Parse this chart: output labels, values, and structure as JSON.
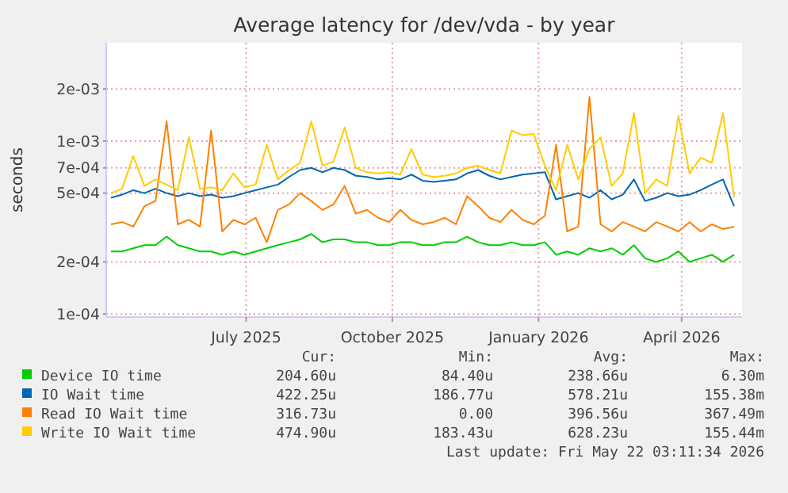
{
  "chart_data": {
    "type": "line",
    "title": "Average latency for /dev/vda - by year",
    "ylabel": "seconds",
    "log": "y",
    "grid": true,
    "legend": "bottom",
    "marker": "none",
    "line_style": "solid",
    "x": [
      "2025-04-22",
      "2025-04-29",
      "2025-05-06",
      "2025-05-13",
      "2025-05-20",
      "2025-05-27",
      "2025-06-03",
      "2025-06-10",
      "2025-06-17",
      "2025-06-24",
      "2025-07-01",
      "2025-07-08",
      "2025-07-15",
      "2025-07-22",
      "2025-07-29",
      "2025-08-05",
      "2025-08-12",
      "2025-08-19",
      "2025-08-26",
      "2025-09-02",
      "2025-09-09",
      "2025-09-16",
      "2025-09-23",
      "2025-09-30",
      "2025-10-07",
      "2025-10-14",
      "2025-10-21",
      "2025-10-28",
      "2025-11-04",
      "2025-11-11",
      "2025-11-18",
      "2025-11-25",
      "2025-12-02",
      "2025-12-09",
      "2025-12-16",
      "2025-12-23",
      "2025-12-30",
      "2026-01-06",
      "2026-01-13",
      "2026-01-20",
      "2026-01-27",
      "2026-02-03",
      "2026-02-10",
      "2026-02-17",
      "2026-02-24",
      "2026-03-03",
      "2026-03-10",
      "2026-03-17",
      "2026-03-24",
      "2026-03-31",
      "2026-04-07",
      "2026-04-14",
      "2026-04-21",
      "2026-04-28",
      "2026-05-05",
      "2026-05-12",
      "2026-05-19"
    ],
    "xlim": [
      "2025-04-19",
      "2026-05-24"
    ],
    "xticks": [
      {
        "value": "2025-07-16",
        "label": "July 2025"
      },
      {
        "value": "2025-10-16",
        "label": "October 2025"
      },
      {
        "value": "2026-01-16",
        "label": "January 2026"
      },
      {
        "value": "2026-04-16",
        "label": "April 2026"
      }
    ],
    "ylim": [
      9.6e-05,
      0.0037
    ],
    "yticks": [
      {
        "value": 0.0001,
        "label": "1e-04"
      },
      {
        "value": 0.0002,
        "label": "2e-04"
      },
      {
        "value": 0.0005,
        "label": "5e-04"
      },
      {
        "value": 0.0007,
        "label": "7e-04"
      },
      {
        "value": 0.001,
        "label": "1e-03"
      },
      {
        "value": 0.002,
        "label": "2e-03"
      }
    ],
    "series": [
      {
        "name": "Device IO time",
        "color": "#00cc00",
        "values": [
          0.00023,
          0.00023,
          0.00024,
          0.00025,
          0.00025,
          0.00028,
          0.00025,
          0.00024,
          0.00023,
          0.00023,
          0.00022,
          0.00023,
          0.00022,
          0.00023,
          0.00024,
          0.00025,
          0.00026,
          0.00027,
          0.00029,
          0.00026,
          0.00027,
          0.00027,
          0.00026,
          0.00026,
          0.00025,
          0.00025,
          0.00026,
          0.00026,
          0.00025,
          0.00025,
          0.00026,
          0.00026,
          0.00028,
          0.00026,
          0.00025,
          0.00025,
          0.00026,
          0.00025,
          0.00025,
          0.00026,
          0.00022,
          0.00023,
          0.00022,
          0.00024,
          0.00023,
          0.00024,
          0.00022,
          0.00025,
          0.00021,
          0.0002,
          0.00021,
          0.00023,
          0.0002,
          0.00021,
          0.00022,
          0.0002,
          0.00022
        ]
      },
      {
        "name": "IO Wait time",
        "color": "#0066b3",
        "values": [
          0.00047,
          0.00049,
          0.00052,
          0.0005,
          0.00053,
          0.0005,
          0.00048,
          0.0005,
          0.00048,
          0.00049,
          0.00047,
          0.00048,
          0.0005,
          0.00052,
          0.00054,
          0.00056,
          0.00062,
          0.00068,
          0.0007,
          0.00066,
          0.0007,
          0.00068,
          0.00063,
          0.00062,
          0.0006,
          0.00061,
          0.0006,
          0.00064,
          0.00059,
          0.00058,
          0.00059,
          0.0006,
          0.00065,
          0.00068,
          0.00063,
          0.0006,
          0.00062,
          0.00064,
          0.00065,
          0.00066,
          0.00046,
          0.00048,
          0.0005,
          0.00047,
          0.00052,
          0.00046,
          0.00049,
          0.0006,
          0.00045,
          0.00047,
          0.0005,
          0.00048,
          0.00049,
          0.00052,
          0.00056,
          0.0006,
          0.00042
        ]
      },
      {
        "name": "Read IO Wait time",
        "color": "#ff8000",
        "values": [
          0.00033,
          0.00034,
          0.00032,
          0.00042,
          0.00045,
          0.0013,
          0.00033,
          0.00035,
          0.00032,
          0.00115,
          0.0003,
          0.00035,
          0.00033,
          0.00036,
          0.00026,
          0.0004,
          0.00043,
          0.0005,
          0.00045,
          0.0004,
          0.00043,
          0.00055,
          0.00038,
          0.0004,
          0.00036,
          0.00034,
          0.0004,
          0.00035,
          0.00033,
          0.00034,
          0.00036,
          0.00033,
          0.00048,
          0.00042,
          0.00036,
          0.00034,
          0.0004,
          0.00035,
          0.00033,
          0.00037,
          0.00095,
          0.0003,
          0.00032,
          0.0018,
          0.00033,
          0.0003,
          0.00034,
          0.00032,
          0.0003,
          0.00034,
          0.00032,
          0.0003,
          0.00034,
          0.0003,
          0.00033,
          0.00031,
          0.00032
        ]
      },
      {
        "name": "Write IO Wait time",
        "color": "#ffcc00",
        "values": [
          0.0005,
          0.00053,
          0.00082,
          0.00055,
          0.0006,
          0.00056,
          0.00052,
          0.00105,
          0.00053,
          0.00054,
          0.00052,
          0.00065,
          0.00054,
          0.00056,
          0.00095,
          0.0006,
          0.00068,
          0.00075,
          0.0013,
          0.00072,
          0.00076,
          0.0012,
          0.0007,
          0.00066,
          0.00065,
          0.00066,
          0.00064,
          0.0009,
          0.00064,
          0.00062,
          0.00063,
          0.00065,
          0.0007,
          0.00072,
          0.00068,
          0.00065,
          0.00115,
          0.00108,
          0.0011,
          0.00072,
          0.00052,
          0.00095,
          0.0006,
          0.0009,
          0.00105,
          0.00055,
          0.00065,
          0.00145,
          0.0005,
          0.0006,
          0.00055,
          0.0014,
          0.00065,
          0.0008,
          0.00075,
          0.00145,
          0.00047
        ]
      }
    ],
    "annotations": [
      "Cur:",
      "Min:",
      "Avg:",
      "Max:",
      "204.60u",
      "84.40u",
      "238.66u",
      "6.30m",
      "422.25u",
      "186.77u",
      "578.21u",
      "155.38m",
      "316.73u",
      "0.00",
      "396.56u",
      "367.49m",
      "474.90u",
      "183.43u",
      "628.23u",
      "155.44m",
      "Last update: Fri May 22 03:11:34 2026"
    ]
  }
}
